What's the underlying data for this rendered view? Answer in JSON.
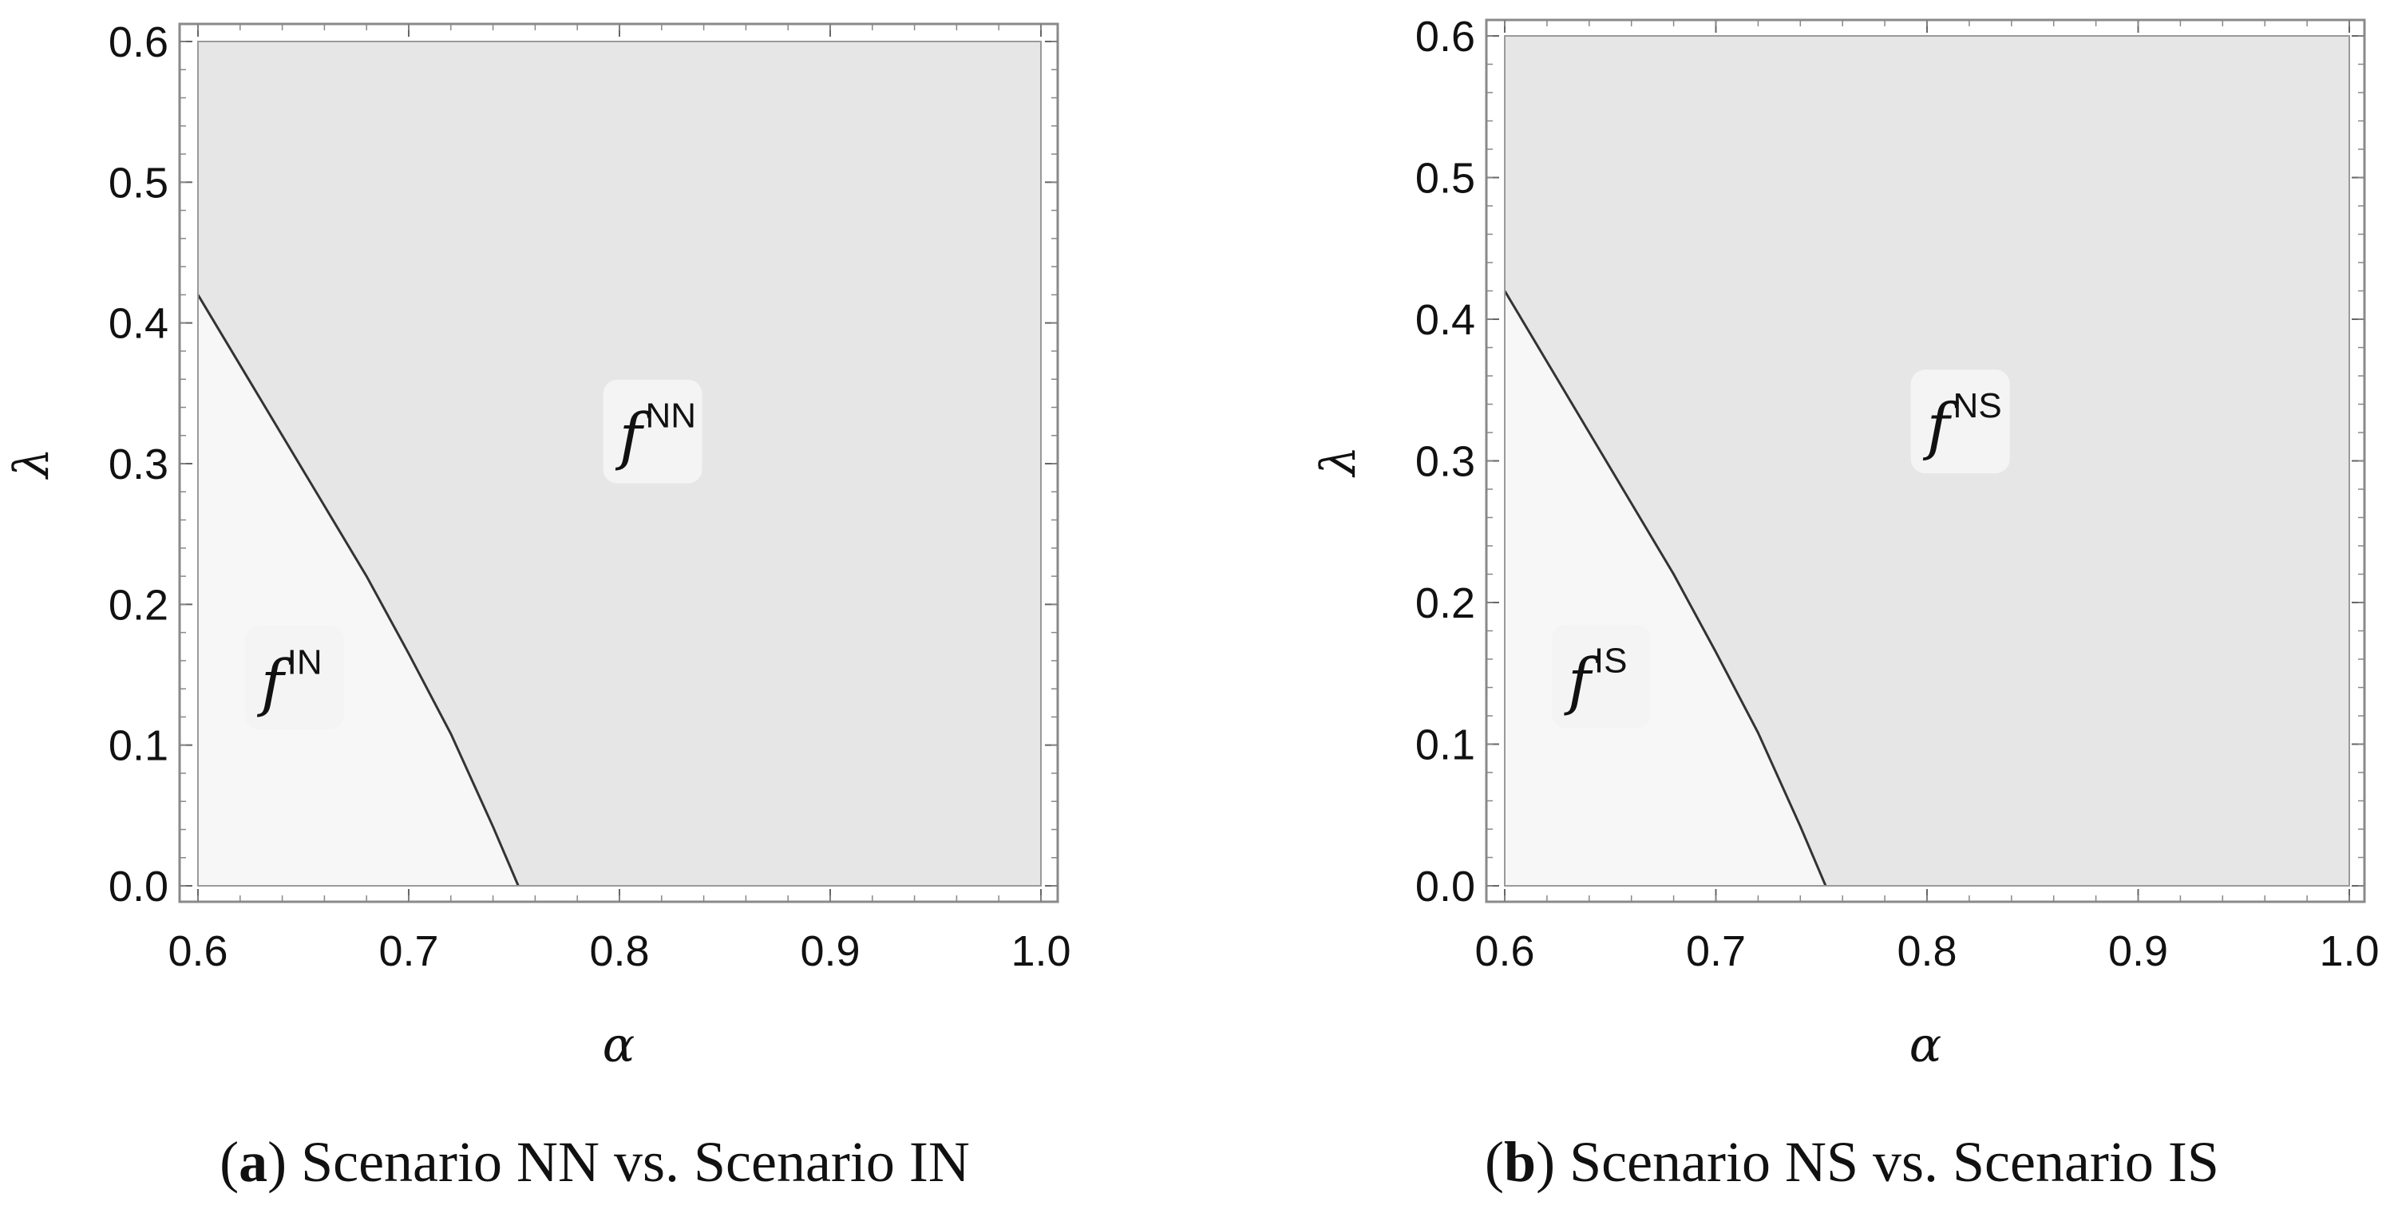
{
  "chart_data": [
    {
      "type": "area",
      "panel": "a",
      "caption_letter": "a",
      "caption_text": "Scenario NN vs. Scenario IN",
      "xlabel": "α",
      "ylabel": "λ",
      "xlim": [
        0.6,
        1.0
      ],
      "ylim": [
        0.0,
        0.6
      ],
      "xticks": [
        "0.6",
        "0.7",
        "0.8",
        "0.9",
        "1.0"
      ],
      "yticks": [
        "0.0",
        "0.1",
        "0.2",
        "0.3",
        "0.4",
        "0.5",
        "0.6"
      ],
      "boundary": {
        "x": [
          0.6,
          0.62,
          0.64,
          0.66,
          0.68,
          0.7,
          0.72,
          0.74,
          0.752
        ],
        "y": [
          0.42,
          0.37,
          0.32,
          0.27,
          0.22,
          0.165,
          0.108,
          0.042,
          0.0
        ]
      },
      "regions": [
        {
          "base": "f",
          "sup": "NN",
          "x": 0.815,
          "y": 0.32,
          "fill": "#e6e6e6"
        },
        {
          "base": "f",
          "sup": "IN",
          "x": 0.645,
          "y": 0.145,
          "fill": "#f7f7f7"
        }
      ],
      "grid": false
    },
    {
      "type": "area",
      "panel": "b",
      "caption_letter": "b",
      "caption_text": "Scenario NS vs. Scenario IS",
      "xlabel": "α",
      "ylabel": "λ",
      "xlim": [
        0.6,
        1.0
      ],
      "ylim": [
        0.0,
        0.6
      ],
      "xticks": [
        "0.6",
        "0.7",
        "0.8",
        "0.9",
        "1.0"
      ],
      "yticks": [
        "0.0",
        "0.1",
        "0.2",
        "0.3",
        "0.4",
        "0.5",
        "0.6"
      ],
      "boundary": {
        "x": [
          0.6,
          0.62,
          0.64,
          0.66,
          0.68,
          0.7,
          0.72,
          0.74,
          0.752
        ],
        "y": [
          0.42,
          0.37,
          0.32,
          0.27,
          0.22,
          0.165,
          0.108,
          0.042,
          0.0
        ]
      },
      "regions": [
        {
          "base": "f",
          "sup": "NS",
          "x": 0.815,
          "y": 0.325,
          "fill": "#e6e6e6"
        },
        {
          "base": "f",
          "sup": "IS",
          "x": 0.645,
          "y": 0.145,
          "fill": "#f7f7f7"
        }
      ],
      "grid": false
    }
  ],
  "colors": {
    "upper_region": "#e6e6e6",
    "lower_region": "#f7f7f7",
    "boundary_line": "#333333",
    "frame": "#8a8a8a",
    "label_box": "#f4f4f4"
  }
}
